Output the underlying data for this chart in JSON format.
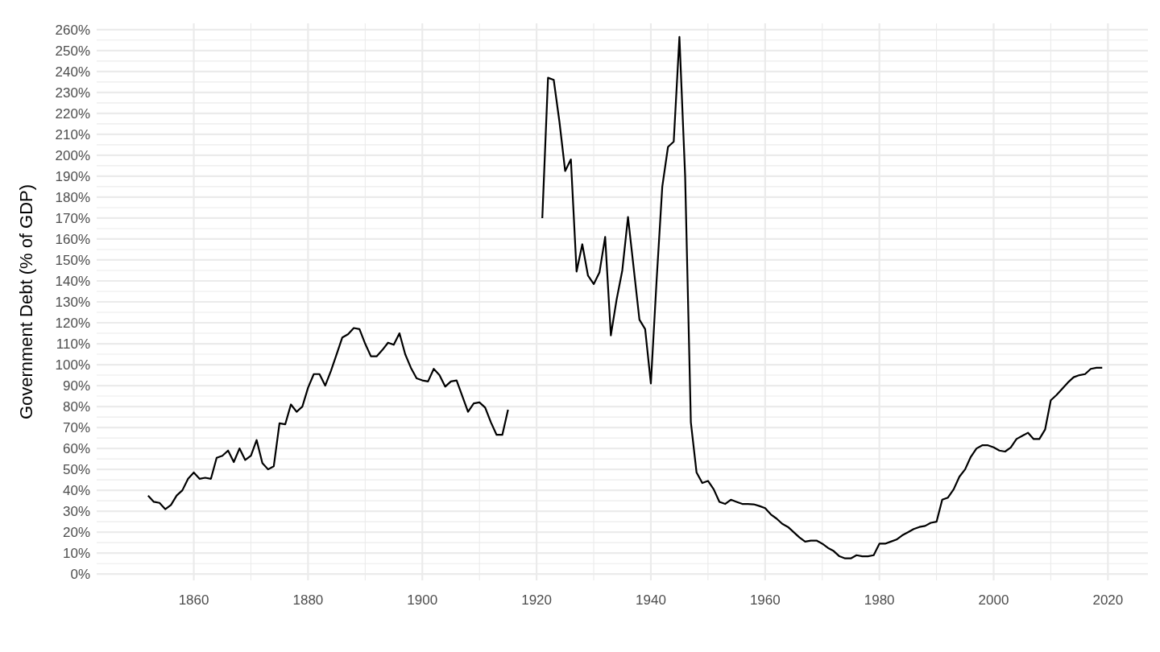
{
  "chart_data": {
    "type": "line",
    "ylabel": "Government Debt (% of GDP)",
    "x": [
      1852,
      1853,
      1854,
      1855,
      1856,
      1857,
      1858,
      1859,
      1860,
      1861,
      1862,
      1863,
      1864,
      1865,
      1866,
      1867,
      1868,
      1869,
      1870,
      1871,
      1872,
      1873,
      1874,
      1875,
      1876,
      1877,
      1878,
      1879,
      1880,
      1881,
      1882,
      1883,
      1884,
      1885,
      1886,
      1887,
      1888,
      1889,
      1890,
      1891,
      1892,
      1893,
      1894,
      1895,
      1896,
      1897,
      1898,
      1899,
      1900,
      1901,
      1902,
      1903,
      1904,
      1905,
      1906,
      1907,
      1908,
      1909,
      1910,
      1911,
      1912,
      1913,
      1914,
      1915,
      1916,
      1917,
      1918,
      1919,
      1920,
      1921,
      1922,
      1923,
      1924,
      1925,
      1926,
      1927,
      1928,
      1929,
      1930,
      1931,
      1932,
      1933,
      1934,
      1935,
      1936,
      1937,
      1938,
      1939,
      1940,
      1941,
      1942,
      1943,
      1944,
      1945,
      1946,
      1947,
      1948,
      1949,
      1950,
      1951,
      1952,
      1953,
      1954,
      1955,
      1956,
      1957,
      1958,
      1959,
      1960,
      1961,
      1962,
      1963,
      1964,
      1965,
      1966,
      1967,
      1968,
      1969,
      1970,
      1971,
      1972,
      1973,
      1974,
      1975,
      1976,
      1977,
      1978,
      1979,
      1980,
      1981,
      1982,
      1983,
      1984,
      1985,
      1986,
      1987,
      1988,
      1989,
      1990,
      1991,
      1992,
      1993,
      1994,
      1995,
      1996,
      1997,
      1998,
      1999,
      2000,
      2001,
      2002,
      2003,
      2004,
      2005,
      2006,
      2007,
      2008,
      2009,
      2010,
      2011,
      2012,
      2013,
      2014,
      2015,
      2016,
      2017,
      2018,
      2019
    ],
    "series": [
      {
        "color": "#000000",
        "values": [
          37.5,
          34.5,
          34,
          31,
          33,
          37.5,
          40,
          45.5,
          48.5,
          45.5,
          46,
          45.5,
          55.5,
          56.5,
          59,
          53.5,
          60,
          54.5,
          56.5,
          64,
          53,
          50,
          51.5,
          72,
          71.5,
          81,
          77.5,
          80,
          89,
          95.5,
          95.5,
          90,
          97,
          105,
          113,
          114.5,
          117.5,
          117,
          110,
          104,
          104,
          107,
          110.5,
          109.5,
          115,
          105,
          98.5,
          93.5,
          92.5,
          92,
          98,
          95,
          89.5,
          92,
          92.5,
          85,
          77.5,
          81.5,
          82,
          79.5,
          72.5,
          66.5,
          66.5,
          78.5,
          null,
          null,
          null,
          null,
          null,
          170,
          237,
          236,
          216,
          192.5,
          198,
          144.5,
          157.5,
          142.5,
          138.5,
          144,
          161,
          114,
          131,
          145,
          170.5,
          146,
          121.5,
          117,
          91,
          140,
          185,
          204,
          206.5,
          256.5,
          190,
          72.5,
          48.5,
          43.5,
          44.5,
          40.5,
          34.5,
          33.5,
          35.5,
          34.5,
          33.5,
          33.5,
          33.3,
          32.5,
          31.5,
          28.5,
          26.5,
          24,
          22.5,
          20,
          17.5,
          15.5,
          16,
          16,
          14.5,
          12.5,
          11,
          8.5,
          7.5,
          7.5,
          9,
          8.5,
          8.5,
          9,
          14.5,
          14.5,
          15.5,
          16.5,
          18.5,
          20,
          21.5,
          22.5,
          23,
          24.5,
          25,
          35.5,
          36.5,
          40.5,
          46.5,
          50,
          56,
          60,
          61.5,
          61.5,
          60.5,
          59,
          58.5,
          60.5,
          64.5,
          66,
          67.5,
          64.5,
          64.5,
          69,
          83,
          85.5,
          88.5,
          91.5,
          94,
          95,
          95.5,
          98,
          98.5,
          98.5
        ]
      }
    ],
    "xlim": [
      1843,
      2027
    ],
    "xticks": [
      1860,
      1880,
      1900,
      1920,
      1940,
      1960,
      1980,
      2000,
      2020
    ],
    "ylim": [
      -3,
      263
    ],
    "yticks": [
      {
        "value": 0,
        "label": "0%"
      },
      {
        "value": 10,
        "label": "10%"
      },
      {
        "value": 20,
        "label": "20%"
      },
      {
        "value": 30,
        "label": "30%"
      },
      {
        "value": 40,
        "label": "40%"
      },
      {
        "value": 50,
        "label": "50%"
      },
      {
        "value": 60,
        "label": "60%"
      },
      {
        "value": 70,
        "label": "70%"
      },
      {
        "value": 80,
        "label": "80%"
      },
      {
        "value": 90,
        "label": "90%"
      },
      {
        "value": 100,
        "label": "100%"
      },
      {
        "value": 110,
        "label": "110%"
      },
      {
        "value": 120,
        "label": "120%"
      },
      {
        "value": 130,
        "label": "130%"
      },
      {
        "value": 140,
        "label": "140%"
      },
      {
        "value": 150,
        "label": "150%"
      },
      {
        "value": 160,
        "label": "160%"
      },
      {
        "value": 170,
        "label": "170%"
      },
      {
        "value": 180,
        "label": "180%"
      },
      {
        "value": 190,
        "label": "190%"
      },
      {
        "value": 200,
        "label": "200%"
      },
      {
        "value": 210,
        "label": "210%"
      },
      {
        "value": 220,
        "label": "220%"
      },
      {
        "value": 230,
        "label": "230%"
      },
      {
        "value": 240,
        "label": "240%"
      },
      {
        "value": 250,
        "label": "250%"
      },
      {
        "value": 260,
        "label": "260%"
      }
    ],
    "grid": true,
    "marker": "none",
    "line_style": "solid"
  }
}
